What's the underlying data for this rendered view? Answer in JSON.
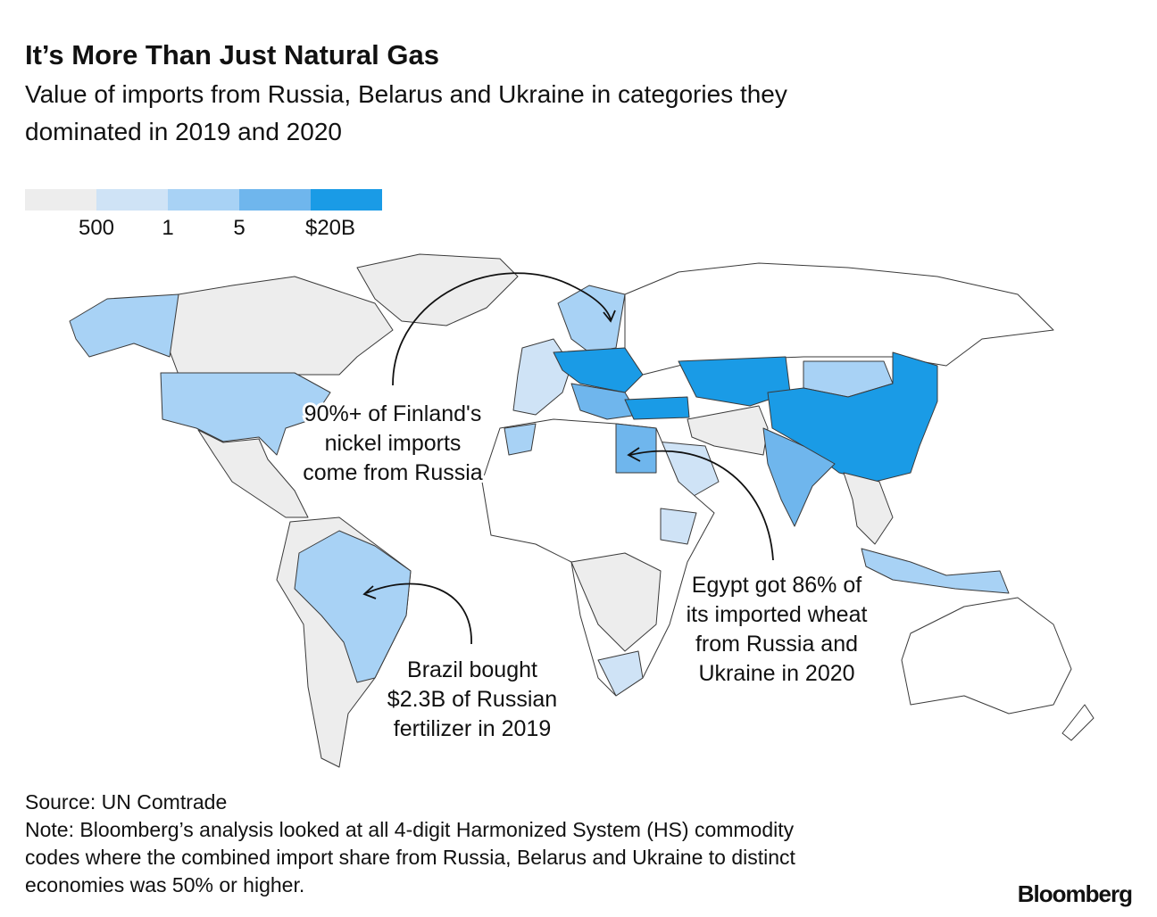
{
  "header": {
    "title": "It’s More Than Just Natural Gas",
    "subtitle_lines": [
      "Value of imports from Russia, Belarus and Ukraine in categories they",
      "dominated in 2019 and 2020"
    ]
  },
  "legend": {
    "colors": [
      "#ededed",
      "#cfe3f6",
      "#a8d2f5",
      "#6fb6ed",
      "#1a9be6"
    ],
    "labels": [
      "500",
      "1",
      "5",
      "$20B"
    ]
  },
  "annotations": [
    {
      "lines": [
        "90%+ of Finland's",
        "nickel imports",
        "come from Russia"
      ]
    },
    {
      "lines": [
        "Egypt got 86% of",
        "its imported wheat",
        "from Russia and",
        "Ukraine in 2020"
      ]
    },
    {
      "lines": [
        "Brazil bought",
        "$2.3B of Russian",
        "fertilizer in 2019"
      ]
    }
  ],
  "footer": {
    "source": "Source: UN Comtrade",
    "note_lines": [
      "Note: Bloomberg’s analysis looked at all 4-digit Harmonized System (HS) commodity",
      "codes where the combined import share from Russia, Belarus and Ukraine to distinct",
      "economies was 50% or higher."
    ],
    "brand": "Bloomberg"
  }
}
